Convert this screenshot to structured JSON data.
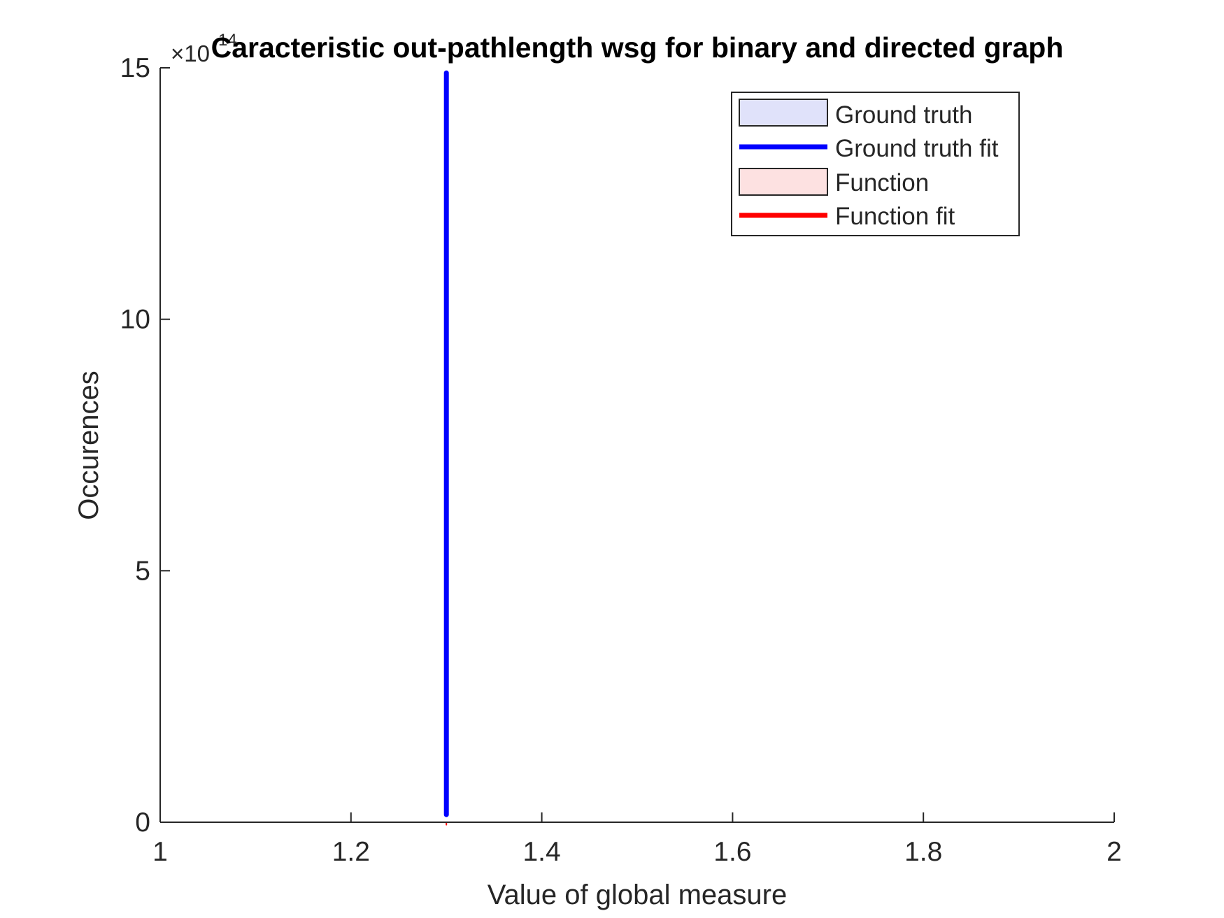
{
  "chart_data": {
    "type": "line",
    "title": "Caracteristic out-pathlength wsg for binary and directed graph",
    "xlabel": "Value of global measure",
    "ylabel": "Occurences",
    "xlim": [
      1,
      2
    ],
    "ylim": [
      0,
      15
    ],
    "y_exponent_label": "×10",
    "y_exponent": "14",
    "xticks": [
      1,
      1.2,
      1.4,
      1.6,
      1.8,
      2
    ],
    "xtick_labels": [
      "1",
      "1.2",
      "1.4",
      "1.6",
      "1.8",
      "2"
    ],
    "yticks": [
      0,
      5,
      10,
      15
    ],
    "ytick_labels": [
      "0",
      "5",
      "10",
      "15"
    ],
    "grid": false,
    "legend_position": "top-right",
    "legend": [
      {
        "label": "Ground truth",
        "kind": "patch",
        "color": "#e0e2fa"
      },
      {
        "label": "Ground truth fit",
        "kind": "line",
        "color": "#0000ff"
      },
      {
        "label": "Function",
        "kind": "patch",
        "color": "#fde1e1"
      },
      {
        "label": "Function fit",
        "kind": "line",
        "color": "#ff0000"
      }
    ],
    "series": [
      {
        "name": "Ground truth fit",
        "color": "#0000ff",
        "x": [
          1.3,
          1.3
        ],
        "y": [
          0.15,
          14.9
        ]
      },
      {
        "name": "Function fit",
        "color": "#ff0000",
        "x": [
          1.3,
          1.3
        ],
        "y": [
          -0.05,
          0
        ]
      }
    ]
  }
}
